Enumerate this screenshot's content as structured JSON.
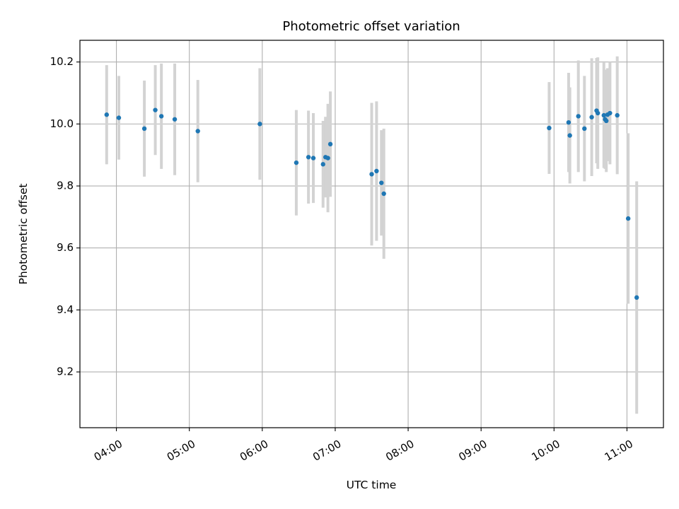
{
  "chart_data": {
    "type": "scatter",
    "title": "Photometric offset variation",
    "xlabel": "UTC time",
    "ylabel": "Photometric offset",
    "xlim": [
      "03:30",
      "11:30"
    ],
    "ylim": [
      9.02,
      10.27
    ],
    "grid": true,
    "x_ticks": [
      "04:00",
      "05:00",
      "06:00",
      "07:00",
      "08:00",
      "09:00",
      "10:00",
      "11:00"
    ],
    "y_ticks": [
      9.2,
      9.4,
      9.6,
      9.8,
      10.0,
      10.2
    ],
    "colors": {
      "points": "#1f77b4",
      "errorbars": "#d3d3d3",
      "grid": "#b0b0b0"
    },
    "series": [
      {
        "points": [
          {
            "t": "03:52",
            "y": 10.03,
            "err": 0.16
          },
          {
            "t": "04:02",
            "y": 10.02,
            "err": 0.135
          },
          {
            "t": "04:23",
            "y": 9.985,
            "err": 0.155
          },
          {
            "t": "04:32",
            "y": 10.045,
            "err": 0.145
          },
          {
            "t": "04:37",
            "y": 10.025,
            "err": 0.17
          },
          {
            "t": "04:48",
            "y": 10.015,
            "err": 0.18
          },
          {
            "t": "05:07",
            "y": 9.977,
            "err": 0.165
          },
          {
            "t": "05:58",
            "y": 10.0,
            "err": 0.18
          },
          {
            "t": "06:28",
            "y": 9.875,
            "err": 0.17
          },
          {
            "t": "06:38",
            "y": 9.893,
            "err": 0.15
          },
          {
            "t": "06:42",
            "y": 9.89,
            "err": 0.145
          },
          {
            "t": "06:50",
            "y": 9.87,
            "err": 0.14
          },
          {
            "t": "06:52",
            "y": 9.893,
            "err": 0.13
          },
          {
            "t": "06:54",
            "y": 9.89,
            "err": 0.175
          },
          {
            "t": "06:56",
            "y": 9.935,
            "err": 0.17
          },
          {
            "t": "07:30",
            "y": 9.838,
            "err": 0.23
          },
          {
            "t": "07:34",
            "y": 9.848,
            "err": 0.225
          },
          {
            "t": "07:38",
            "y": 9.81,
            "err": 0.17
          },
          {
            "t": "07:40",
            "y": 9.775,
            "err": 0.21
          },
          {
            "t": "09:56",
            "y": 9.987,
            "err": 0.148
          },
          {
            "t": "10:12",
            "y": 10.005,
            "err": 0.16
          },
          {
            "t": "10:13",
            "y": 9.963,
            "err": 0.155
          },
          {
            "t": "10:20",
            "y": 10.025,
            "err": 0.18
          },
          {
            "t": "10:25",
            "y": 9.985,
            "err": 0.17
          },
          {
            "t": "10:31",
            "y": 10.022,
            "err": 0.19
          },
          {
            "t": "10:35",
            "y": 10.043,
            "err": 0.17
          },
          {
            "t": "10:36",
            "y": 10.035,
            "err": 0.18
          },
          {
            "t": "10:41",
            "y": 10.028,
            "err": 0.17
          },
          {
            "t": "10:42",
            "y": 10.015,
            "err": 0.16
          },
          {
            "t": "10:43",
            "y": 10.01,
            "err": 0.165
          },
          {
            "t": "10:44",
            "y": 10.03,
            "err": 0.15
          },
          {
            "t": "10:46",
            "y": 10.035,
            "err": 0.165
          },
          {
            "t": "10:52",
            "y": 10.028,
            "err": 0.19
          },
          {
            "t": "11:01",
            "y": 9.695,
            "err": 0.275
          },
          {
            "t": "11:08",
            "y": 9.44,
            "err": 0.375
          }
        ]
      }
    ]
  }
}
